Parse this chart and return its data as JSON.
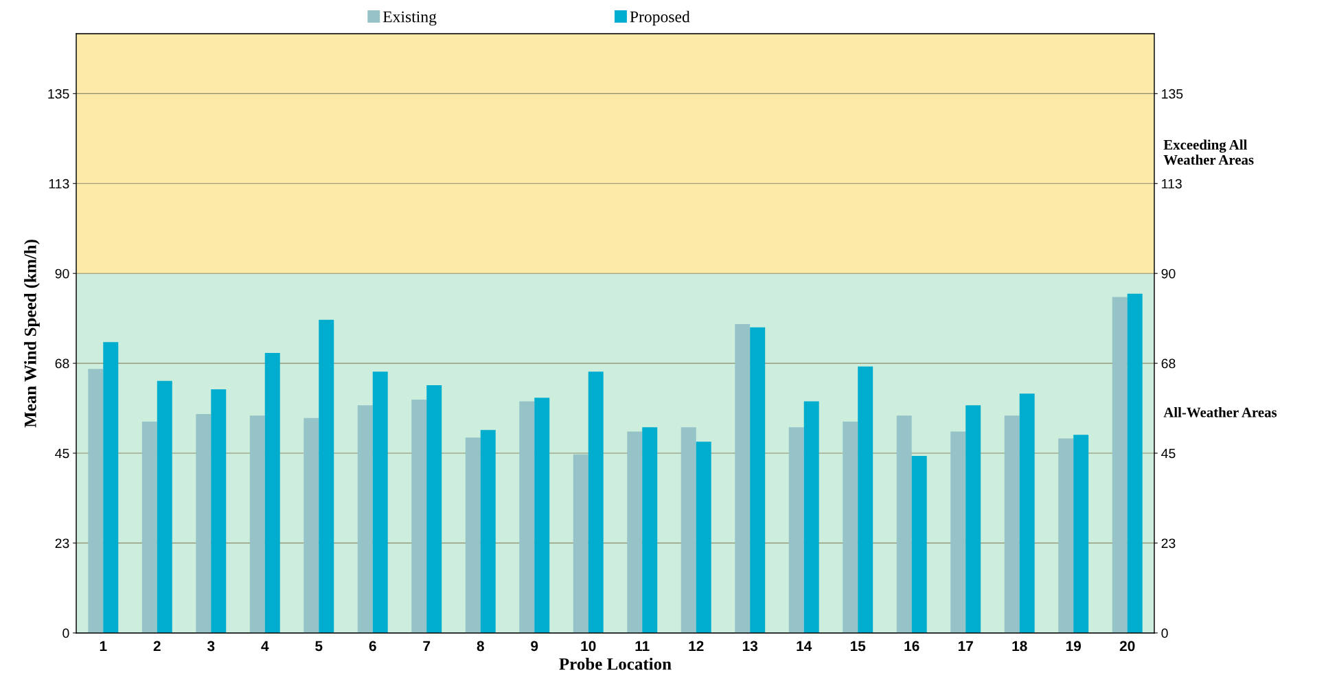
{
  "chart_data": {
    "type": "bar",
    "xlabel": "Probe Location",
    "ylabel": "Mean Wind Speed (km/h)",
    "categories": [
      "1",
      "2",
      "3",
      "4",
      "5",
      "6",
      "7",
      "8",
      "9",
      "10",
      "11",
      "12",
      "13",
      "14",
      "15",
      "16",
      "17",
      "18",
      "19",
      "20"
    ],
    "series": [
      {
        "name": "Existing",
        "color": "#96c3c8",
        "values": [
          66.1,
          52.9,
          54.8,
          54.4,
          53.8,
          57.0,
          58.4,
          48.9,
          58.0,
          44.7,
          50.4,
          51.5,
          77.3,
          51.5,
          52.9,
          54.4,
          50.4,
          54.4,
          48.7,
          84.1
        ]
      },
      {
        "name": "Proposed",
        "color": "#00adcf",
        "values": [
          72.8,
          63.1,
          61.0,
          70.1,
          78.4,
          65.4,
          62.0,
          50.8,
          58.9,
          65.4,
          51.5,
          47.9,
          76.5,
          58.0,
          66.7,
          44.3,
          57.0,
          59.9,
          49.6,
          84.9
        ]
      }
    ],
    "ylim": [
      0,
      150
    ],
    "yticks": [
      0,
      {
        "value": 22.5,
        "label": "23"
      },
      45,
      {
        "value": 67.5,
        "label": "68"
      },
      90,
      {
        "value": 112.5,
        "label": "113"
      },
      135
    ],
    "y2lim": [
      0,
      150
    ],
    "y2ticks": [
      0,
      {
        "value": 22.5,
        "label": "23"
      },
      45,
      {
        "value": 67.5,
        "label": "68"
      },
      90,
      {
        "value": 112.5,
        "label": "113"
      },
      135
    ],
    "bands": [
      {
        "axis": "y",
        "from": 0,
        "to": 90,
        "label": "All-Weather Areas",
        "color": "#cdeedd"
      },
      {
        "axis": "y",
        "from": 90,
        "to": 150,
        "label": "Exceeding All\nWeather Areas",
        "color": "#fdeaa8"
      }
    ],
    "grid": "y",
    "legend": "top"
  }
}
